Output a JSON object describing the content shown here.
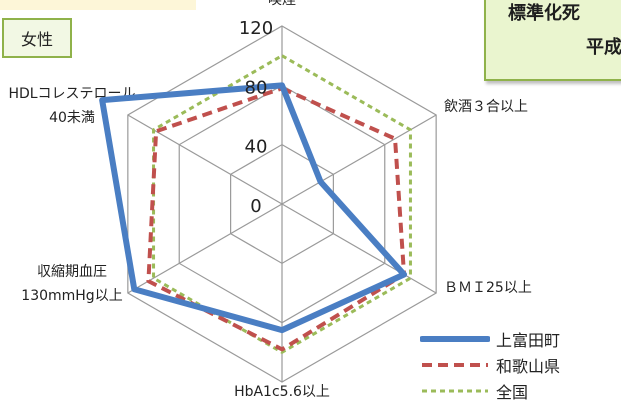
{
  "sex_label": "女性",
  "title_lines": [
    "標準化死",
    "平成"
  ],
  "chart_data": {
    "type": "radar",
    "axes": [
      "喫煙",
      "飲酒３合以上",
      "ＢＭＩ25以上",
      "HbA1c5.6以上",
      "収縮期血圧\n130mmHg以上",
      "HDLコレステロール\n40未満"
    ],
    "tick_labels": [
      "0",
      "40",
      "80",
      "120"
    ],
    "ylim": [
      0,
      120
    ],
    "grid": true,
    "legend_position": "bottom-right",
    "series": [
      {
        "name": "上富田町",
        "color": "#4a7ec3",
        "style": "solid",
        "values": [
          80,
          30,
          95,
          85,
          115,
          140
        ]
      },
      {
        "name": "和歌山県",
        "color": "#c0504d",
        "style": "dashed",
        "values": [
          78,
          88,
          95,
          98,
          104,
          98
        ]
      },
      {
        "name": "全国",
        "color": "#9bbb59",
        "style": "dotted",
        "values": [
          100,
          100,
          100,
          100,
          100,
          100
        ]
      }
    ]
  }
}
